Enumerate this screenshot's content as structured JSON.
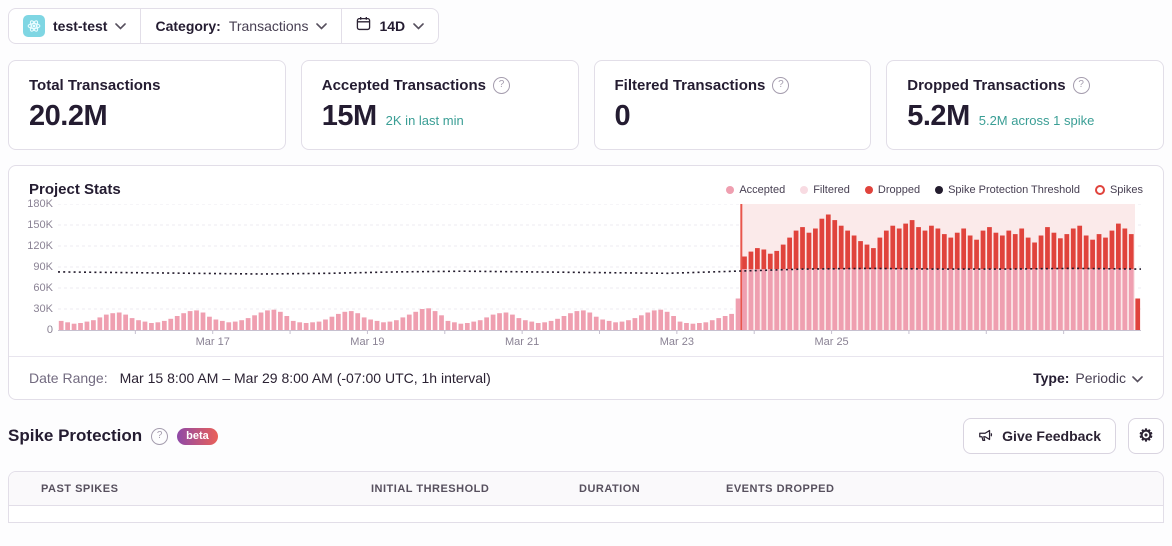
{
  "colors": {
    "teal": "#3a9e95",
    "accent_red": "#e0433c",
    "project_icon_bg": "#7fd6e3",
    "beta_gradient": [
      "#8e49a8",
      "#ea6058"
    ]
  },
  "topbar": {
    "project_name": "test-test",
    "category_label": "Category:",
    "category_value": "Transactions",
    "date_range_button": "14D"
  },
  "cards": [
    {
      "title": "Total Transactions",
      "value": "20.2M",
      "subtext": ""
    },
    {
      "title": "Accepted Transactions",
      "value": "15M",
      "subtext": "2K in last min"
    },
    {
      "title": "Filtered Transactions",
      "value": "0",
      "subtext": ""
    },
    {
      "title": "Dropped Transactions",
      "value": "5.2M",
      "subtext": "5.2M across 1 spike"
    }
  ],
  "chart": {
    "title": "Project Stats",
    "legend": [
      {
        "label": "Accepted",
        "color": "#ef9fb0",
        "shape": "dot"
      },
      {
        "label": "Filtered",
        "color": "#f8dbe2",
        "shape": "dot"
      },
      {
        "label": "Dropped",
        "color": "#e0433c",
        "shape": "dot"
      },
      {
        "label": "Spike Protection Threshold",
        "color": "#231c2e",
        "shape": "dot"
      },
      {
        "label": "Spikes",
        "color": "#e0433c",
        "shape": "ring"
      }
    ]
  },
  "chart_data": {
    "type": "bar",
    "stacked": true,
    "title": "Project Stats",
    "x_range": "Mar 15 8:00 AM — Mar 29 8:00 AM",
    "total_hours": 336,
    "n_bins": 168,
    "hours_per_bin": 2,
    "units": "thousands of transactions (K)",
    "ylim_k": [
      0,
      180
    ],
    "y_tick_values_k": [
      180,
      150,
      120,
      90,
      60,
      30,
      0
    ],
    "y_tick_labels": [
      "180K",
      "150K",
      "120K",
      "90K",
      "60K",
      "30K",
      "0"
    ],
    "x_tick_labels": [
      "Mar 17",
      "Mar 19",
      "Mar 21",
      "Mar 23",
      "Mar 25"
    ],
    "x_tick_hours": [
      48,
      96,
      144,
      192,
      240
    ],
    "accepted_prespike": [
      13,
      11,
      9,
      10,
      12,
      14,
      18,
      22,
      24,
      25,
      22,
      17,
      14,
      12,
      10,
      11,
      13,
      16,
      20,
      24,
      27,
      28,
      25,
      19,
      15,
      13,
      11,
      12,
      14,
      17,
      21,
      25,
      28,
      29,
      26,
      20,
      13,
      11,
      10,
      11,
      12,
      15,
      19,
      23,
      26,
      27,
      24,
      18,
      15,
      13,
      11,
      12,
      14,
      18,
      22,
      26,
      30,
      31,
      27,
      21,
      13,
      11,
      9,
      10,
      12,
      14,
      18,
      22,
      24,
      25,
      22,
      17,
      14,
      12,
      10,
      11,
      13,
      16,
      20,
      24,
      27,
      28,
      25,
      19,
      15,
      13,
      11,
      12,
      14,
      17,
      21,
      25,
      28,
      29,
      26,
      20,
      12,
      10,
      9,
      10,
      11,
      14,
      17,
      20,
      23,
      45
    ],
    "accepted_spike_level": 87,
    "dropped_spike": [
      18,
      25,
      30,
      28,
      22,
      26,
      35,
      45,
      55,
      60,
      52,
      58,
      72,
      78,
      70,
      62,
      55,
      48,
      40,
      35,
      30,
      45,
      55,
      62,
      58,
      65,
      70,
      60,
      55,
      62,
      58,
      50,
      45,
      52,
      58,
      48,
      42,
      55,
      60,
      52,
      48,
      55,
      50,
      58,
      45,
      38,
      48,
      60,
      52,
      44,
      50,
      58,
      62,
      48,
      42,
      50,
      45,
      55,
      65,
      58,
      50
    ],
    "final_bin": {
      "accepted": 0,
      "dropped": 45
    },
    "spike_region": {
      "start_bin": 106,
      "fill": "#fbeaea",
      "border": "#e8564c",
      "count_label": "1 spike"
    },
    "threshold_points_k": [
      83,
      82,
      81,
      80,
      81,
      83,
      84,
      83,
      82,
      81,
      84,
      87,
      88,
      87,
      87,
      88,
      87
    ],
    "colors": {
      "accepted": "#ef9fb0",
      "dropped": "#e0433c",
      "threshold": "#221a2b",
      "grid": "#ecesee-fix",
      "gridline": "#edebf1",
      "axis": "#c6c0cf"
    }
  },
  "date_range_row": {
    "label": "Date Range:",
    "value": "Mar 15 8:00 AM – Mar 29 8:00 AM (-07:00 UTC, 1h interval)",
    "type_label": "Type:",
    "type_value": "Periodic"
  },
  "spike_protection": {
    "title": "Spike Protection",
    "beta_label": "beta",
    "feedback_button": "Give Feedback"
  },
  "table": {
    "headers": [
      "Past Spikes",
      "Initial Threshold",
      "Duration",
      "Events Dropped"
    ]
  }
}
